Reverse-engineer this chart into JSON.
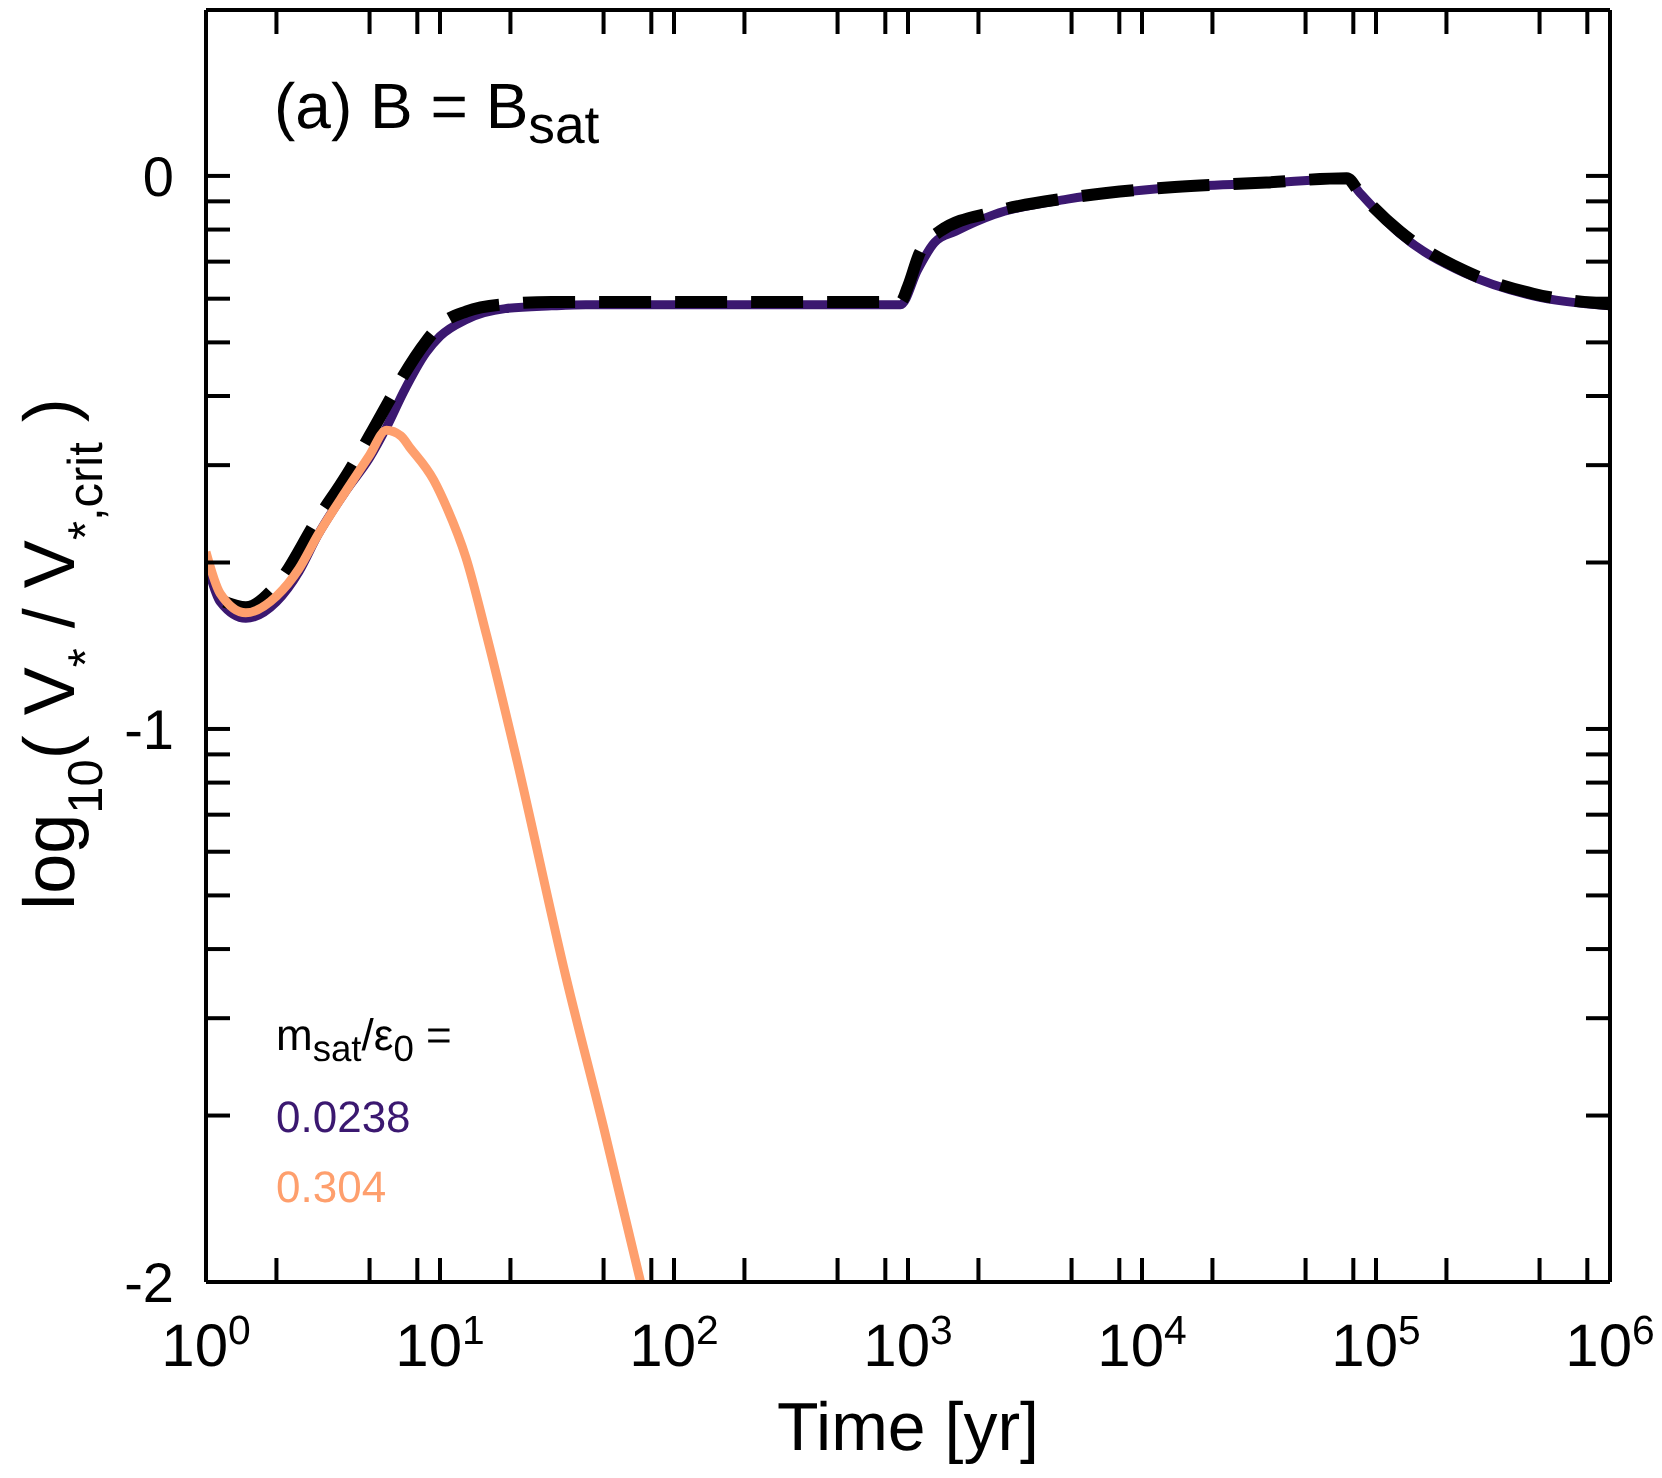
{
  "chart_data": {
    "type": "line",
    "title": "(a) B = B$_{sat}$",
    "xlabel": "Time [yr]",
    "ylabel": "log$_{10}$( V$_{*}$ / V$_{*,crit}$ )",
    "legend_title": "m$_{sat}$/ε$_{0}$ =",
    "legend": "bottom left",
    "log": "x",
    "xlim": [
      1,
      1000000
    ],
    "xticks": [
      {
        "value": 1,
        "label": "10$^{0}$"
      },
      {
        "value": 2,
        "label": null
      },
      {
        "value": 5,
        "label": null
      },
      {
        "value": 8,
        "label": null
      },
      {
        "value": 10,
        "label": "10$^{1}$"
      },
      {
        "value": 20,
        "label": null
      },
      {
        "value": 50,
        "label": null
      },
      {
        "value": 80,
        "label": null
      },
      {
        "value": 100,
        "label": "10$^{2}$"
      },
      {
        "value": 200,
        "label": null
      },
      {
        "value": 500,
        "label": null
      },
      {
        "value": 800,
        "label": null
      },
      {
        "value": 1000,
        "label": "10$^{3}$"
      },
      {
        "value": 2000,
        "label": null
      },
      {
        "value": 5000,
        "label": null
      },
      {
        "value": 8000,
        "label": null
      },
      {
        "value": 10000,
        "label": "10$^{4}$"
      },
      {
        "value": 20000,
        "label": null
      },
      {
        "value": 50000,
        "label": null
      },
      {
        "value": 80000,
        "label": null
      },
      {
        "value": 100000,
        "label": "10$^{5}$"
      },
      {
        "value": 200000,
        "label": null
      },
      {
        "value": 500000,
        "label": null
      },
      {
        "value": 800000,
        "label": null
      },
      {
        "value": 1000000,
        "label": "10$^{6}$"
      }
    ],
    "ylim": [
      -2,
      0.3
    ],
    "yticks": [
      -2,
      {
        "value": -1.699,
        "label": null
      },
      {
        "value": -1.523,
        "label": null
      },
      {
        "value": -1.398,
        "label": null
      },
      {
        "value": -1.301,
        "label": null
      },
      {
        "value": -1.222,
        "label": null
      },
      {
        "value": -1.155,
        "label": null
      },
      {
        "value": -1.097,
        "label": null
      },
      {
        "value": -1.046,
        "label": null
      },
      -1,
      {
        "value": -0.699,
        "label": null
      },
      {
        "value": -0.523,
        "label": null
      },
      {
        "value": -0.398,
        "label": null
      },
      {
        "value": -0.301,
        "label": null
      },
      {
        "value": -0.222,
        "label": null
      },
      {
        "value": -0.155,
        "label": null
      },
      {
        "value": -0.097,
        "label": null
      },
      {
        "value": -0.046,
        "label": null
      },
      0
    ],
    "series": [
      {
        "name": "0.0238",
        "color": "#3b1870",
        "x": [
          1,
          1.15,
          1.48,
          2,
          2.5,
          3,
          4,
          5,
          5.9,
          7,
          8.7,
          10,
          12.9,
          19,
          30,
          42,
          100,
          300,
          930,
          1100,
          1300,
          1600,
          2330,
          4800,
          13800,
          34000,
          75000,
          85000,
          126000,
          240000,
          470000,
          1000000
        ],
        "values": [
          -0.695,
          -0.77,
          -0.8,
          -0.77,
          -0.715,
          -0.65,
          -0.567,
          -0.51,
          -0.455,
          -0.39,
          -0.32,
          -0.29,
          -0.26,
          -0.24,
          -0.235,
          -0.233,
          -0.233,
          -0.233,
          -0.233,
          -0.17,
          -0.12,
          -0.1,
          -0.07,
          -0.042,
          -0.021,
          -0.013,
          -0.005,
          -0.03,
          -0.104,
          -0.176,
          -0.217,
          -0.235
        ]
      },
      {
        "color": "#000000",
        "line_style": "dashed",
        "x": [
          1.2,
          1.48,
          2,
          3,
          4,
          5,
          6,
          7,
          8.7,
          10,
          13,
          19,
          30,
          100,
          930,
          1000,
          1120,
          1370,
          2330,
          4800,
          13800,
          34000,
          75000,
          85000,
          126000,
          240000,
          470000,
          1000000
        ],
        "values": [
          -0.77,
          -0.78,
          -0.74,
          -0.62,
          -0.54,
          -0.47,
          -0.41,
          -0.36,
          -0.3,
          -0.27,
          -0.245,
          -0.232,
          -0.228,
          -0.228,
          -0.228,
          -0.2,
          -0.14,
          -0.1,
          -0.065,
          -0.04,
          -0.02,
          -0.012,
          -0.004,
          -0.03,
          -0.1,
          -0.172,
          -0.213,
          -0.232
        ]
      },
      {
        "name": "0.304",
        "color": "#fe9f6d",
        "x": [
          1,
          1.15,
          1.48,
          2,
          2.5,
          3,
          4,
          5,
          5.9,
          6.8,
          7.4,
          9.4,
          10.7,
          12.9,
          15.8,
          21,
          34.6,
          50,
          72
        ],
        "values": [
          -0.68,
          -0.755,
          -0.79,
          -0.76,
          -0.71,
          -0.65,
          -0.567,
          -0.505,
          -0.46,
          -0.47,
          -0.49,
          -0.55,
          -0.6,
          -0.69,
          -0.83,
          -1.045,
          -1.45,
          -1.72,
          -2.0
        ]
      }
    ]
  }
}
